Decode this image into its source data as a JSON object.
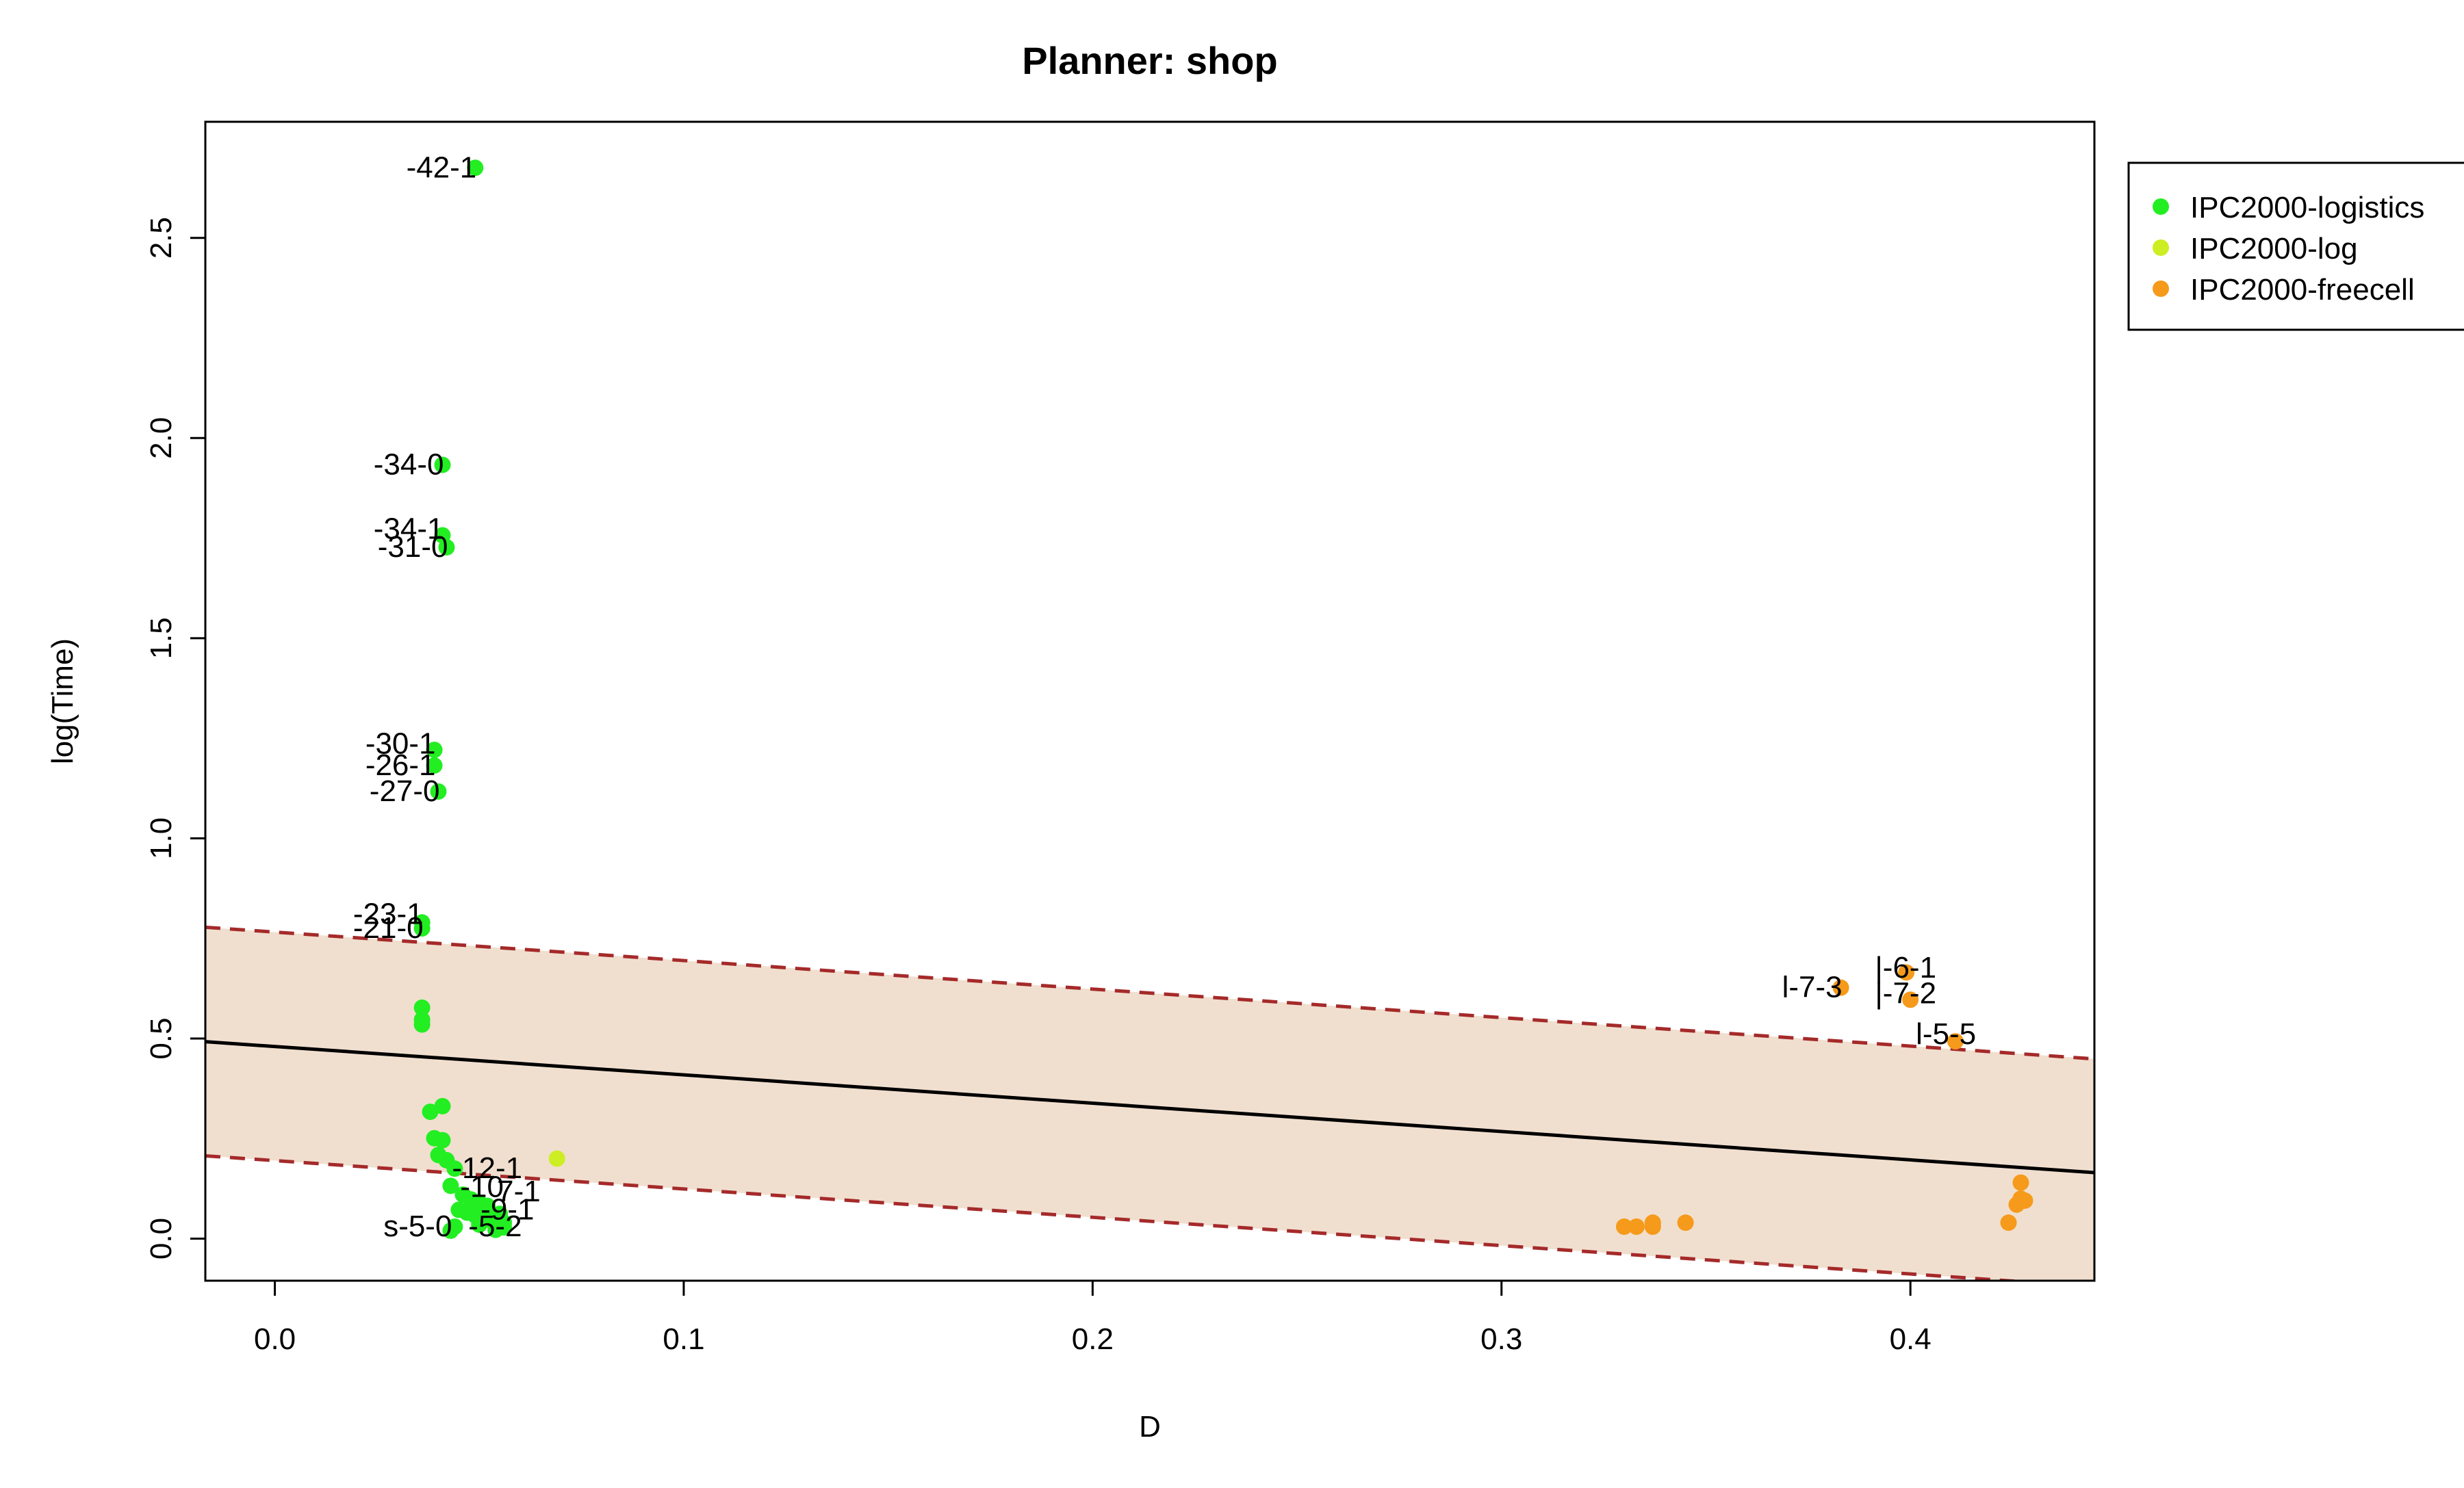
{
  "chart_data": {
    "type": "scatter",
    "title": "Planner: shop",
    "xlabel": "D",
    "ylabel": "log(Time)",
    "xlim": [
      -0.017,
      0.445
    ],
    "ylim": [
      -0.105,
      2.79
    ],
    "xticks": [
      "0.0",
      "0.1",
      "0.2",
      "0.3",
      "0.4"
    ],
    "xtick_values": [
      0.0,
      0.1,
      0.2,
      0.3,
      0.4
    ],
    "yticks": [
      "0.0",
      "0.5",
      "1.0",
      "1.5",
      "2.0",
      "2.5"
    ],
    "ytick_values": [
      0.0,
      0.5,
      1.0,
      1.5,
      2.0,
      2.5
    ],
    "grid": false,
    "legend_position": "top-right, outside plot",
    "regression": {
      "fit": {
        "x": [
          -0.017,
          0.445
        ],
        "y": [
          0.492,
          0.165
        ],
        "color": "#000000"
      },
      "upper": {
        "x": [
          -0.017,
          0.445
        ],
        "y": [
          0.778,
          0.449
        ],
        "color": "#a52a2a"
      },
      "lower": {
        "x": [
          -0.017,
          0.445
        ],
        "y": [
          0.207,
          -0.12
        ],
        "color": "#a52a2a"
      },
      "band_color": "#f0dfcf"
    },
    "series": [
      {
        "name": "IPC2000-logistics",
        "color": "#22ee22",
        "points": [
          {
            "x": 0.049,
            "y": 2.675
          },
          {
            "x": 0.041,
            "y": 1.933
          },
          {
            "x": 0.041,
            "y": 1.757
          },
          {
            "x": 0.042,
            "y": 1.727
          },
          {
            "x": 0.039,
            "y": 1.221
          },
          {
            "x": 0.039,
            "y": 1.182
          },
          {
            "x": 0.04,
            "y": 1.117
          },
          {
            "x": 0.036,
            "y": 0.79
          },
          {
            "x": 0.036,
            "y": 0.775
          },
          {
            "x": 0.036,
            "y": 0.577
          },
          {
            "x": 0.036,
            "y": 0.547
          },
          {
            "x": 0.036,
            "y": 0.535
          },
          {
            "x": 0.038,
            "y": 0.317
          },
          {
            "x": 0.041,
            "y": 0.331
          },
          {
            "x": 0.039,
            "y": 0.251
          },
          {
            "x": 0.041,
            "y": 0.246
          },
          {
            "x": 0.04,
            "y": 0.209
          },
          {
            "x": 0.042,
            "y": 0.196
          },
          {
            "x": 0.044,
            "y": 0.175
          },
          {
            "x": 0.043,
            "y": 0.132
          },
          {
            "x": 0.046,
            "y": 0.11
          },
          {
            "x": 0.048,
            "y": 0.098
          },
          {
            "x": 0.05,
            "y": 0.09
          },
          {
            "x": 0.052,
            "y": 0.082
          },
          {
            "x": 0.045,
            "y": 0.072
          },
          {
            "x": 0.047,
            "y": 0.065
          },
          {
            "x": 0.049,
            "y": 0.058
          },
          {
            "x": 0.051,
            "y": 0.05
          },
          {
            "x": 0.053,
            "y": 0.045
          },
          {
            "x": 0.055,
            "y": 0.062
          },
          {
            "x": 0.056,
            "y": 0.04
          },
          {
            "x": 0.044,
            "y": 0.03
          },
          {
            "x": 0.043,
            "y": 0.02
          },
          {
            "x": 0.054,
            "y": 0.022
          },
          {
            "x": 0.056,
            "y": 0.028
          },
          {
            "x": 0.05,
            "y": 0.035
          }
        ]
      },
      {
        "name": "IPC2000-log",
        "color": "#ccee22",
        "points": [
          {
            "x": 0.069,
            "y": 0.2
          }
        ]
      },
      {
        "name": "IPC2000-freecell",
        "color": "#f59a1a",
        "points": [
          {
            "x": 0.383,
            "y": 0.627
          },
          {
            "x": 0.399,
            "y": 0.665
          },
          {
            "x": 0.4,
            "y": 0.597
          },
          {
            "x": 0.411,
            "y": 0.493
          },
          {
            "x": 0.33,
            "y": 0.03
          },
          {
            "x": 0.333,
            "y": 0.03
          },
          {
            "x": 0.337,
            "y": 0.03
          },
          {
            "x": 0.337,
            "y": 0.04
          },
          {
            "x": 0.345,
            "y": 0.04
          },
          {
            "x": 0.424,
            "y": 0.04
          },
          {
            "x": 0.426,
            "y": 0.085
          },
          {
            "x": 0.427,
            "y": 0.1
          },
          {
            "x": 0.428,
            "y": 0.095
          },
          {
            "x": 0.427,
            "y": 0.14
          }
        ]
      }
    ],
    "annotations": [
      {
        "text": "-42-1",
        "x": 0.049,
        "y": 2.675,
        "anchor": "end"
      },
      {
        "text": "-34-0",
        "x": 0.041,
        "y": 1.933,
        "anchor": "end"
      },
      {
        "text": "-34-1",
        "x": 0.041,
        "y": 1.772,
        "anchor": "end"
      },
      {
        "text": "-31-0",
        "x": 0.042,
        "y": 1.727,
        "anchor": "end"
      },
      {
        "text": "-30-1",
        "x": 0.039,
        "y": 1.236,
        "anchor": "end"
      },
      {
        "text": "-26-1",
        "x": 0.039,
        "y": 1.182,
        "anchor": "end"
      },
      {
        "text": "-27-0",
        "x": 0.04,
        "y": 1.117,
        "anchor": "end"
      },
      {
        "text": "-23-1",
        "x": 0.036,
        "y": 0.81,
        "anchor": "end"
      },
      {
        "text": "-21-0",
        "x": 0.036,
        "y": 0.775,
        "anchor": "end"
      },
      {
        "text": "-12-1",
        "x": 0.044,
        "y": 0.175,
        "anchor": "start"
      },
      {
        "text": "-10",
        "x": 0.046,
        "y": 0.128,
        "anchor": "start"
      },
      {
        "text": "7-1",
        "x": 0.055,
        "y": 0.117,
        "anchor": "start"
      },
      {
        "text": "-9-1",
        "x": 0.051,
        "y": 0.072,
        "anchor": "start"
      },
      {
        "text": "s-5-0",
        "x": 0.043,
        "y": 0.03,
        "anchor": "end"
      },
      {
        "text": "-5-2",
        "x": 0.048,
        "y": 0.03,
        "anchor": "start"
      },
      {
        "text": "l-7-3",
        "x": 0.383,
        "y": 0.627,
        "anchor": "end"
      },
      {
        "text": "|-6-1",
        "x": 0.392,
        "y": 0.676,
        "anchor": "start"
      },
      {
        "text": "|-7-2",
        "x": 0.392,
        "y": 0.612,
        "anchor": "start"
      },
      {
        "text": "l-5-5",
        "x": 0.402,
        "y": 0.51,
        "anchor": "start"
      }
    ]
  }
}
